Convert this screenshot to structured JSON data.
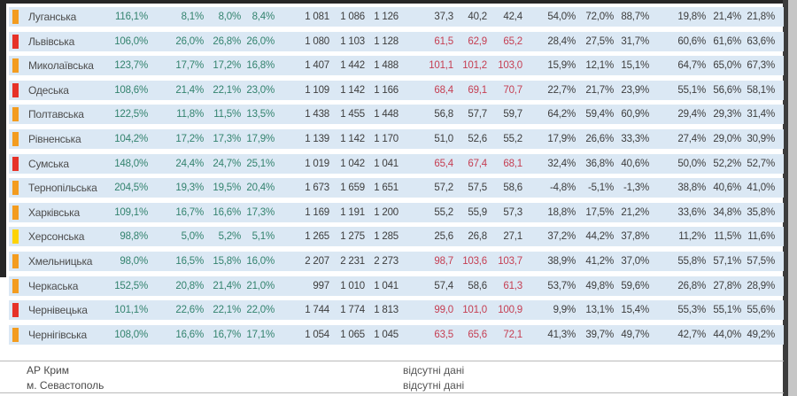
{
  "colors": {
    "row_bg": "#dbe8f4",
    "marker_orange": "#f39c1f",
    "marker_red": "#e63228",
    "marker_yellow": "#fdd304",
    "text_green": "#33836e",
    "text_red": "#c53e52",
    "text_dark": "#3d3d3d"
  },
  "table": {
    "rows": [
      {
        "marker": "orange",
        "name": "Луганська",
        "pct": "116,1%",
        "g1": [
          "8,1%",
          "8,0%",
          "8,4%"
        ],
        "abs": [
          "1 081",
          "1 086",
          "1 126"
        ],
        "mid": [
          "37,3",
          "40,2",
          "42,4"
        ],
        "mid_red": [
          false,
          false,
          false
        ],
        "g4": [
          "54,0%",
          "72,0%",
          "88,7%"
        ],
        "g5": [
          "19,8%",
          "21,4%",
          "21,8%"
        ]
      },
      {
        "marker": "red",
        "name": "Львівська",
        "pct": "106,0%",
        "g1": [
          "26,0%",
          "26,8%",
          "26,0%"
        ],
        "abs": [
          "1 080",
          "1 103",
          "1 128"
        ],
        "mid": [
          "61,5",
          "62,9",
          "65,2"
        ],
        "mid_red": [
          true,
          true,
          true
        ],
        "g4": [
          "28,4%",
          "27,5%",
          "31,7%"
        ],
        "g5": [
          "60,6%",
          "61,6%",
          "63,6%"
        ]
      },
      {
        "marker": "orange",
        "name": "Миколаївська",
        "pct": "123,7%",
        "g1": [
          "17,7%",
          "17,2%",
          "16,8%"
        ],
        "abs": [
          "1 407",
          "1 442",
          "1 488"
        ],
        "mid": [
          "101,1",
          "101,2",
          "103,0"
        ],
        "mid_red": [
          true,
          true,
          true
        ],
        "g4": [
          "15,9%",
          "12,1%",
          "15,1%"
        ],
        "g5": [
          "64,7%",
          "65,0%",
          "67,3%"
        ]
      },
      {
        "marker": "red",
        "name": "Одеська",
        "pct": "108,6%",
        "g1": [
          "21,4%",
          "22,1%",
          "23,0%"
        ],
        "abs": [
          "1 109",
          "1 142",
          "1 166"
        ],
        "mid": [
          "68,4",
          "69,1",
          "70,7"
        ],
        "mid_red": [
          true,
          true,
          true
        ],
        "g4": [
          "22,7%",
          "21,7%",
          "23,9%"
        ],
        "g5": [
          "55,1%",
          "56,6%",
          "58,1%"
        ]
      },
      {
        "marker": "orange",
        "name": "Полтавська",
        "pct": "122,5%",
        "g1": [
          "11,8%",
          "11,5%",
          "13,5%"
        ],
        "abs": [
          "1 438",
          "1 455",
          "1 448"
        ],
        "mid": [
          "56,8",
          "57,7",
          "59,7"
        ],
        "mid_red": [
          false,
          false,
          false
        ],
        "g4": [
          "64,2%",
          "59,4%",
          "60,9%"
        ],
        "g5": [
          "29,4%",
          "29,3%",
          "31,4%"
        ]
      },
      {
        "marker": "orange",
        "name": "Рівненська",
        "pct": "104,2%",
        "g1": [
          "17,2%",
          "17,3%",
          "17,9%"
        ],
        "abs": [
          "1 139",
          "1 142",
          "1 170"
        ],
        "mid": [
          "51,0",
          "52,6",
          "55,2"
        ],
        "mid_red": [
          false,
          false,
          false
        ],
        "g4": [
          "17,9%",
          "26,6%",
          "33,3%"
        ],
        "g5": [
          "27,4%",
          "29,0%",
          "30,9%"
        ]
      },
      {
        "marker": "red",
        "name": "Сумська",
        "pct": "148,0%",
        "g1": [
          "24,4%",
          "24,7%",
          "25,1%"
        ],
        "abs": [
          "1 019",
          "1 042",
          "1 041"
        ],
        "mid": [
          "65,4",
          "67,4",
          "68,1"
        ],
        "mid_red": [
          true,
          true,
          true
        ],
        "g4": [
          "32,4%",
          "36,8%",
          "40,6%"
        ],
        "g5": [
          "50,0%",
          "52,2%",
          "52,7%"
        ]
      },
      {
        "marker": "orange",
        "name": "Тернопільська",
        "pct": "204,5%",
        "g1": [
          "19,3%",
          "19,5%",
          "20,4%"
        ],
        "abs": [
          "1 673",
          "1 659",
          "1 651"
        ],
        "mid": [
          "57,2",
          "57,5",
          "58,6"
        ],
        "mid_red": [
          false,
          false,
          false
        ],
        "g4": [
          "-4,8%",
          "-5,1%",
          "-1,3%"
        ],
        "g5": [
          "38,8%",
          "40,6%",
          "41,0%"
        ]
      },
      {
        "marker": "orange",
        "name": "Харківська",
        "pct": "109,1%",
        "g1": [
          "16,7%",
          "16,6%",
          "17,3%"
        ],
        "abs": [
          "1 169",
          "1 191",
          "1 200"
        ],
        "mid": [
          "55,2",
          "55,9",
          "57,3"
        ],
        "mid_red": [
          false,
          false,
          false
        ],
        "g4": [
          "18,8%",
          "17,5%",
          "21,2%"
        ],
        "g5": [
          "33,6%",
          "34,8%",
          "35,8%"
        ]
      },
      {
        "marker": "yellow",
        "name": "Херсонська",
        "pct": "98,8%",
        "g1": [
          "5,0%",
          "5,2%",
          "5,1%"
        ],
        "abs": [
          "1 265",
          "1 275",
          "1 285"
        ],
        "mid": [
          "25,6",
          "26,8",
          "27,1"
        ],
        "mid_red": [
          false,
          false,
          false
        ],
        "g4": [
          "37,2%",
          "44,2%",
          "37,8%"
        ],
        "g5": [
          "11,2%",
          "11,5%",
          "11,6%"
        ]
      },
      {
        "marker": "orange",
        "name": "Хмельницька",
        "pct": "98,0%",
        "g1": [
          "16,5%",
          "15,8%",
          "16,0%"
        ],
        "abs": [
          "2 207",
          "2 231",
          "2 273"
        ],
        "mid": [
          "98,7",
          "103,6",
          "103,7"
        ],
        "mid_red": [
          true,
          true,
          true
        ],
        "g4": [
          "38,9%",
          "41,2%",
          "37,0%"
        ],
        "g5": [
          "55,8%",
          "57,1%",
          "57,5%"
        ]
      },
      {
        "marker": "orange",
        "name": "Черкаська",
        "pct": "152,5%",
        "g1": [
          "20,8%",
          "21,4%",
          "21,0%"
        ],
        "abs": [
          "997",
          "1 010",
          "1 041"
        ],
        "mid": [
          "57,4",
          "58,6",
          "61,3"
        ],
        "mid_red": [
          false,
          false,
          true
        ],
        "g4": [
          "53,7%",
          "49,8%",
          "59,6%"
        ],
        "g5": [
          "26,8%",
          "27,8%",
          "28,9%"
        ]
      },
      {
        "marker": "red",
        "name": "Чернівецька",
        "pct": "101,1%",
        "g1": [
          "22,6%",
          "22,1%",
          "22,0%"
        ],
        "abs": [
          "1 744",
          "1 774",
          "1 813"
        ],
        "mid": [
          "99,0",
          "101,0",
          "100,9"
        ],
        "mid_red": [
          true,
          true,
          true
        ],
        "g4": [
          "9,9%",
          "13,1%",
          "15,4%"
        ],
        "g5": [
          "55,3%",
          "55,1%",
          "55,6%"
        ]
      },
      {
        "marker": "orange",
        "name": "Чернігівська",
        "pct": "108,0%",
        "g1": [
          "16,6%",
          "16,7%",
          "17,1%"
        ],
        "abs": [
          "1 054",
          "1 065",
          "1 045"
        ],
        "mid": [
          "63,5",
          "65,6",
          "72,1"
        ],
        "mid_red": [
          true,
          true,
          true
        ],
        "g4": [
          "41,3%",
          "39,7%",
          "49,7%"
        ],
        "g5": [
          "42,7%",
          "44,0%",
          "49,2%"
        ]
      }
    ],
    "footer_rows": [
      {
        "name": "АР Крим",
        "note": "відсутні дані"
      },
      {
        "name": "м. Севастополь",
        "note": "відсутні дані"
      }
    ]
  }
}
